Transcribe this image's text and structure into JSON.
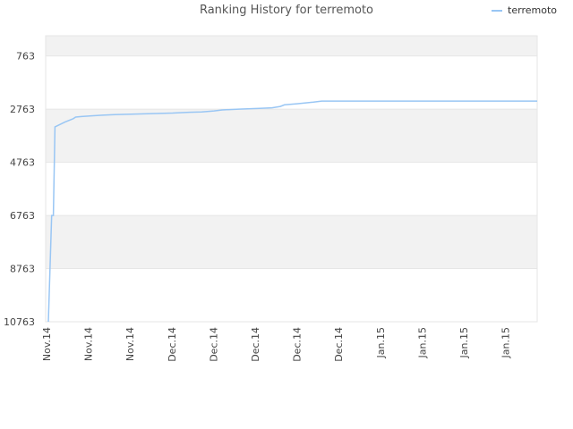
{
  "chart_data": {
    "type": "line",
    "title": "Ranking History for terremoto",
    "xlabel": "",
    "ylabel": "",
    "y_reversed": true,
    "ylim": [
      10763,
      0
    ],
    "y_ticks": [
      763,
      2763,
      4763,
      6763,
      8763,
      10763
    ],
    "x_ticks": [
      "Nov.14",
      "Nov.14",
      "Nov.14",
      "Dec.14",
      "Dec.14",
      "Dec.14",
      "Dec.14",
      "Dec.14",
      "Jan.15",
      "Jan.15",
      "Jan.15",
      "Jan.15"
    ],
    "legend_position": "top-right",
    "grid": true,
    "series": [
      {
        "name": "terremoto",
        "color": "#99c6f4",
        "points": [
          {
            "x": 0.0,
            "y": 10763
          },
          {
            "x": 0.4,
            "y": 6763
          },
          {
            "x": 0.6,
            "y": 6763
          },
          {
            "x": 0.8,
            "y": 3430
          },
          {
            "x": 1.0,
            "y": 3400
          },
          {
            "x": 2.0,
            "y": 3250
          },
          {
            "x": 3.0,
            "y": 3120
          },
          {
            "x": 3.3,
            "y": 3060
          },
          {
            "x": 4.0,
            "y": 3040
          },
          {
            "x": 5.0,
            "y": 3020
          },
          {
            "x": 6.5,
            "y": 2990
          },
          {
            "x": 8.0,
            "y": 2970
          },
          {
            "x": 10.0,
            "y": 2950
          },
          {
            "x": 12.5,
            "y": 2930
          },
          {
            "x": 15.0,
            "y": 2910
          },
          {
            "x": 17.0,
            "y": 2880
          },
          {
            "x": 18.5,
            "y": 2870
          },
          {
            "x": 20.0,
            "y": 2830
          },
          {
            "x": 21.0,
            "y": 2790
          },
          {
            "x": 23.0,
            "y": 2760
          },
          {
            "x": 25.5,
            "y": 2730
          },
          {
            "x": 27.0,
            "y": 2710
          },
          {
            "x": 28.0,
            "y": 2660
          },
          {
            "x": 28.5,
            "y": 2600
          },
          {
            "x": 30.0,
            "y": 2560
          },
          {
            "x": 32.0,
            "y": 2500
          },
          {
            "x": 33.0,
            "y": 2460
          },
          {
            "x": 59.0,
            "y": 2460
          }
        ]
      }
    ]
  }
}
